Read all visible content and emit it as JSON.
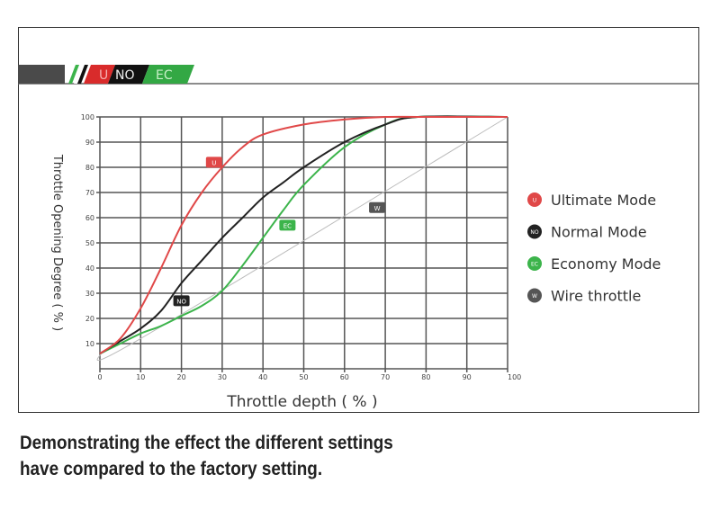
{
  "logo": {
    "segments": [
      {
        "label": "U",
        "color": "#d92b2b"
      },
      {
        "label": "NO",
        "color": "#111111"
      },
      {
        "label": "EC",
        "color": "#33a844"
      }
    ]
  },
  "caption": {
    "line1": "Demonstrating the effect the different settings",
    "line2": "have compared to the factory setting."
  },
  "chart_data": {
    "type": "line",
    "title": "",
    "xlabel": "Throttle depth ( % )",
    "ylabel": "Throttle Opening Degree ( % )",
    "xlim": [
      0,
      100
    ],
    "ylim": [
      0,
      100
    ],
    "xticks": [
      "0",
      "10",
      "20",
      "30",
      "40",
      "50",
      "60",
      "70",
      "80",
      "90",
      "100"
    ],
    "yticks": [
      "10",
      "20",
      "30",
      "40",
      "50",
      "60",
      "70",
      "80",
      "90",
      "100"
    ],
    "grid": true,
    "legend_position": "right",
    "series": [
      {
        "name": "Ultimate Mode",
        "badge": "U",
        "color": "#e04848",
        "badge_at": [
          28,
          82
        ],
        "x": [
          0,
          5,
          10,
          15,
          20,
          25,
          30,
          35,
          40,
          50,
          60,
          70,
          80,
          100
        ],
        "y": [
          6,
          12,
          24,
          40,
          57,
          70,
          80,
          88,
          93,
          97,
          99,
          100,
          100,
          100
        ]
      },
      {
        "name": "Normal Mode",
        "badge": "NO",
        "color": "#222222",
        "badge_at": [
          20,
          27
        ],
        "x": [
          0,
          5,
          10,
          15,
          20,
          25,
          30,
          35,
          40,
          45,
          50,
          60,
          70,
          78,
          100
        ],
        "y": [
          6,
          11,
          16,
          23,
          34,
          43,
          52,
          60,
          68,
          74,
          80,
          90,
          97,
          100,
          100
        ]
      },
      {
        "name": "Economy Mode",
        "badge": "EC",
        "color": "#3cb44b",
        "badge_at": [
          46,
          57
        ],
        "x": [
          0,
          5,
          10,
          15,
          20,
          25,
          30,
          35,
          40,
          45,
          50,
          60,
          70,
          78,
          100
        ],
        "y": [
          6,
          10,
          14,
          17,
          21,
          25,
          31,
          41,
          52,
          63,
          73,
          88,
          97,
          100,
          100
        ]
      },
      {
        "name": "Wire throttle",
        "badge": "W",
        "color": "#bbbbbb",
        "badge_color": "#555555",
        "badge_at": [
          68,
          64
        ],
        "x": [
          0,
          10,
          100
        ],
        "y": [
          6,
          12,
          100
        ]
      }
    ]
  }
}
